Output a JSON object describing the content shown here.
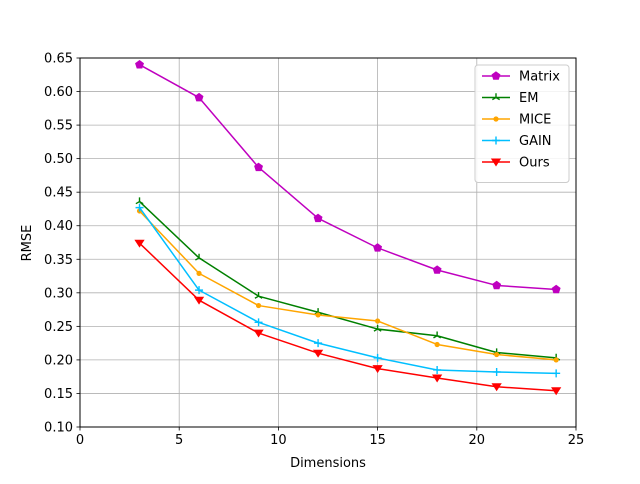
{
  "chart_data": {
    "type": "line",
    "xlabel": "Dimensions",
    "ylabel": "RMSE",
    "xlim": [
      0,
      25
    ],
    "ylim": [
      0.1,
      0.65
    ],
    "xticks": [
      "0",
      "5",
      "10",
      "15",
      "20",
      "25"
    ],
    "yticks": [
      "0.10",
      "0.15",
      "0.20",
      "0.25",
      "0.30",
      "0.35",
      "0.40",
      "0.45",
      "0.50",
      "0.55",
      "0.60",
      "0.65"
    ],
    "grid": true,
    "legend_position": "top-right",
    "x": [
      3,
      6,
      9,
      12,
      15,
      18,
      21,
      24
    ],
    "series": [
      {
        "name": "Matrix",
        "color": "#bf00bf",
        "marker": "pentagon",
        "values": [
          0.64,
          0.591,
          0.487,
          0.411,
          0.367,
          0.334,
          0.311,
          0.305
        ]
      },
      {
        "name": "EM",
        "color": "#008000",
        "marker": "tri-up",
        "values": [
          0.436,
          0.352,
          0.295,
          0.271,
          0.246,
          0.236,
          0.211,
          0.203
        ]
      },
      {
        "name": "MICE",
        "color": "#ffa500",
        "marker": "dot",
        "values": [
          0.422,
          0.329,
          0.281,
          0.267,
          0.258,
          0.223,
          0.208,
          0.2
        ]
      },
      {
        "name": "GAIN",
        "color": "#00bfff",
        "marker": "plus",
        "values": [
          0.427,
          0.304,
          0.256,
          0.225,
          0.203,
          0.185,
          0.182,
          0.18
        ]
      },
      {
        "name": "Ours",
        "color": "#ff0000",
        "marker": "triangle-down",
        "values": [
          0.374,
          0.289,
          0.24,
          0.21,
          0.187,
          0.173,
          0.16,
          0.154
        ]
      }
    ]
  }
}
